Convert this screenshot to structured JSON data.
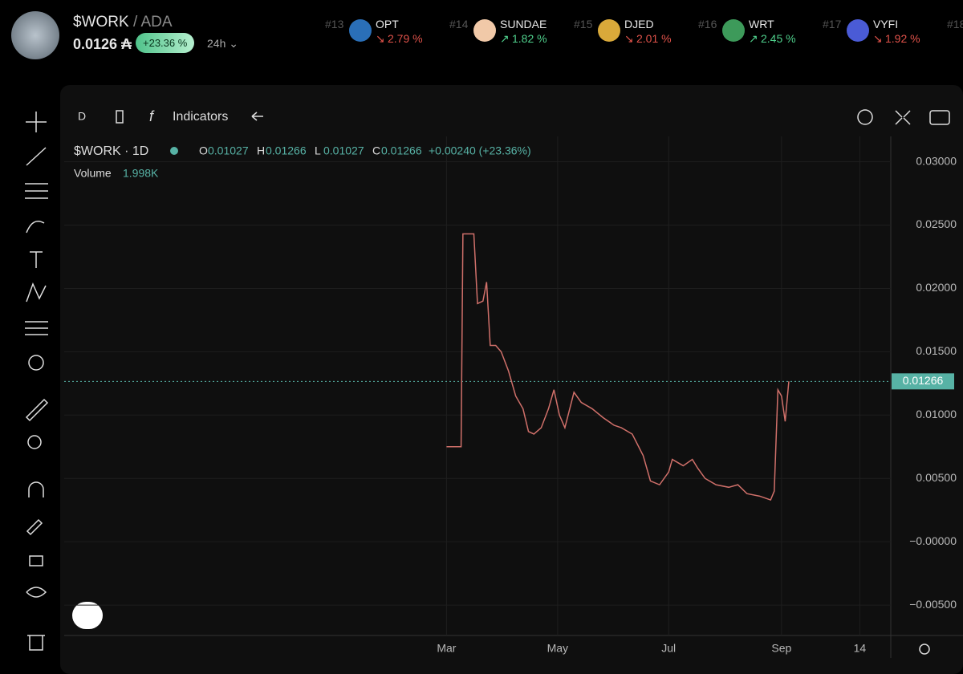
{
  "header": {
    "symbol": "$WORK",
    "pair": "/ ADA",
    "price": "0.0126 ₳",
    "change": "+23.36 %",
    "period": "24h"
  },
  "tickers": [
    {
      "rank": "#13",
      "name": "OPT",
      "arrow": "↘",
      "change": "2.79 %",
      "up": false,
      "icon": "#2a6fb8"
    },
    {
      "rank": "#14",
      "name": "SUNDAE",
      "arrow": "↗",
      "change": "1.82 %",
      "up": true,
      "icon": "#f1c9a8"
    },
    {
      "rank": "#15",
      "name": "DJED",
      "arrow": "↘",
      "change": "2.01 %",
      "up": false,
      "icon": "#d9a93a"
    },
    {
      "rank": "#16",
      "name": "WRT",
      "arrow": "↗",
      "change": "2.45 %",
      "up": true,
      "icon": "#3d9a5a"
    },
    {
      "rank": "#17",
      "name": "VYFI",
      "arrow": "↘",
      "change": "1.92 %",
      "up": false,
      "icon": "#4a5bd6"
    },
    {
      "rank": "#18"
    }
  ],
  "toolbar": {
    "interval": "D",
    "indicators": "Indicators"
  },
  "legend": {
    "title": "$WORK · 1D",
    "o_label": "O",
    "o": "0.01027",
    "h_label": "H",
    "h": "0.01266",
    "l_label": "L",
    "l": "0.01027",
    "c_label": "C",
    "c": "0.01266",
    "change": "+0.00240 (+23.36%)",
    "volume_label": "Volume",
    "volume": "1.998K"
  },
  "chart_data": {
    "type": "line",
    "x": [
      0,
      4,
      8,
      9,
      12,
      15,
      17,
      20,
      22,
      24,
      27,
      30,
      34,
      38,
      42,
      45,
      48,
      52,
      56,
      59,
      62,
      65,
      70,
      74,
      80,
      86,
      92,
      96,
      102,
      108,
      112,
      117,
      122,
      124,
      130,
      135,
      138,
      142,
      148,
      155,
      160,
      165,
      172,
      178,
      180,
      182,
      184,
      186,
      188
    ],
    "values": [
      0.0075,
      0.0075,
      0.0075,
      0.0243,
      0.0243,
      0.0243,
      0.0188,
      0.019,
      0.0205,
      0.0155,
      0.0155,
      0.015,
      0.0135,
      0.0115,
      0.0105,
      0.0087,
      0.0085,
      0.009,
      0.0105,
      0.012,
      0.01,
      0.009,
      0.0118,
      0.011,
      0.0105,
      0.0098,
      0.0092,
      0.009,
      0.0085,
      0.0068,
      0.0048,
      0.0045,
      0.0055,
      0.0065,
      0.006,
      0.0065,
      0.0058,
      0.005,
      0.0045,
      0.0043,
      0.0045,
      0.0038,
      0.0036,
      0.0033,
      0.004,
      0.012,
      0.0115,
      0.0095,
      0.01266
    ],
    "color": "#d0706a",
    "xlim": [
      -210,
      244
    ],
    "xticks": [
      {
        "value": 0,
        "label": "Mar"
      },
      {
        "value": 61,
        "label": "May"
      },
      {
        "value": 122,
        "label": "Jul"
      },
      {
        "value": 184,
        "label": "Sep"
      },
      {
        "value": 227,
        "label": "14"
      }
    ],
    "ylim": [
      -0.0074,
      0.032
    ],
    "yticks": [
      {
        "value": 0.03,
        "label": "0.03000"
      },
      {
        "value": 0.025,
        "label": "0.02500"
      },
      {
        "value": 0.02,
        "label": "0.02000"
      },
      {
        "value": 0.015,
        "label": "0.01500"
      },
      {
        "value": 0.01,
        "label": "0.01000"
      },
      {
        "value": 0.005,
        "label": "0.00500"
      },
      {
        "value": 0,
        "label": "−0.00000"
      },
      {
        "value": -0.005,
        "label": "−0.00500"
      }
    ],
    "last_price": {
      "value": 0.01266,
      "label": "0.01266"
    },
    "grid": true
  }
}
